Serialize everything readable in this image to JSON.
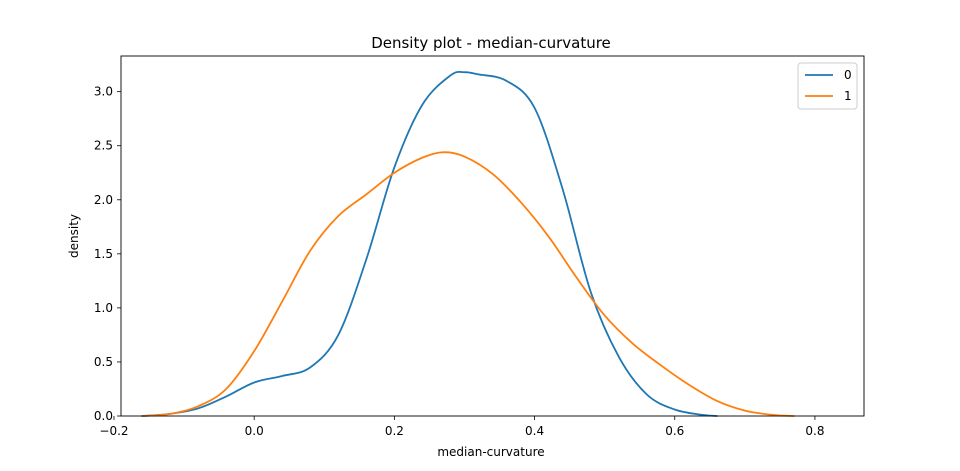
{
  "chart_data": {
    "type": "line",
    "title": "Density plot - median-curvature",
    "xlabel": "median-curvature",
    "ylabel": "density",
    "xlim": [
      -0.19,
      0.87
    ],
    "ylim": [
      0.0,
      3.33
    ],
    "x_ticks": [
      -0.2,
      0.0,
      0.2,
      0.4,
      0.6,
      0.8
    ],
    "x_tick_labels": [
      "−0.2",
      "0.0",
      "0.2",
      "0.4",
      "0.6",
      "0.8"
    ],
    "y_ticks": [
      0.0,
      0.5,
      1.0,
      1.5,
      2.0,
      2.5,
      3.0
    ],
    "y_tick_labels": [
      "0.0",
      "0.5",
      "1.0",
      "1.5",
      "2.0",
      "2.5",
      "3.0"
    ],
    "grid": false,
    "legend_position": "top-right",
    "series": [
      {
        "name": "0",
        "color": "#1f77b4",
        "x": [
          -0.16,
          -0.12,
          -0.08,
          -0.04,
          0.0,
          0.04,
          0.08,
          0.12,
          0.16,
          0.2,
          0.24,
          0.28,
          0.3,
          0.32,
          0.36,
          0.4,
          0.44,
          0.48,
          0.52,
          0.56,
          0.6,
          0.64,
          0.66
        ],
        "y": [
          0.0,
          0.02,
          0.07,
          0.18,
          0.31,
          0.37,
          0.45,
          0.75,
          1.45,
          2.3,
          2.88,
          3.15,
          3.18,
          3.16,
          3.1,
          2.85,
          2.1,
          1.15,
          0.55,
          0.2,
          0.06,
          0.01,
          0.0
        ]
      },
      {
        "name": "1",
        "color": "#ff7f0e",
        "x": [
          -0.16,
          -0.12,
          -0.08,
          -0.04,
          0.0,
          0.04,
          0.08,
          0.12,
          0.16,
          0.2,
          0.24,
          0.27,
          0.3,
          0.34,
          0.38,
          0.42,
          0.46,
          0.5,
          0.54,
          0.58,
          0.62,
          0.66,
          0.7,
          0.74,
          0.77
        ],
        "y": [
          0.0,
          0.02,
          0.09,
          0.25,
          0.6,
          1.06,
          1.53,
          1.85,
          2.05,
          2.25,
          2.39,
          2.44,
          2.4,
          2.24,
          1.98,
          1.66,
          1.28,
          0.93,
          0.67,
          0.47,
          0.29,
          0.14,
          0.05,
          0.01,
          0.0
        ]
      }
    ]
  }
}
